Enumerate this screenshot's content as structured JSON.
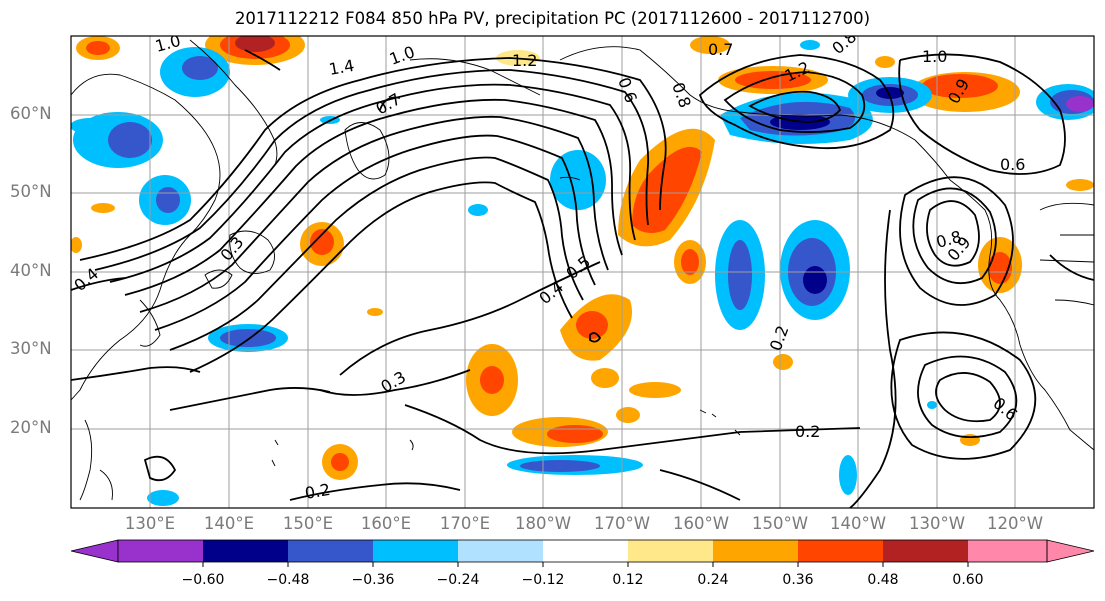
{
  "title": "2017112212 F084 850 hPa PV, precipitation PC (2017112600 - 2017112700)",
  "lat_labels": [
    "60°N",
    "50°N",
    "40°N",
    "30°N",
    "20°N"
  ],
  "lon_labels": [
    "130°E",
    "140°E",
    "150°E",
    "160°E",
    "170°E",
    "180°W",
    "170°W",
    "160°W",
    "150°W",
    "140°W",
    "130°W",
    "120°W"
  ],
  "contour_labels": [
    "1.0",
    "1.4",
    "1.0",
    "1.2",
    "0.7",
    "0.8",
    "1.0",
    "1.2",
    "0.7",
    "0.6",
    "0.8",
    "0.6",
    "0.9",
    "0.3",
    "0.4",
    "0.4",
    "0.5",
    "0.2",
    "0.3",
    "0.2",
    "0.2",
    "0.8",
    "0.9",
    "0.6"
  ],
  "colorbar": {
    "colors": [
      "#9932cc",
      "#00008b",
      "#3656cc",
      "#00bfff",
      "#b0e2ff",
      "#ffffff",
      "#ffe88a",
      "#ffa500",
      "#ff4500",
      "#b22222",
      "#ff88aa"
    ],
    "ticks": [
      "−0.60",
      "−0.48",
      "−0.36",
      "−0.24",
      "−0.12",
      "0.12",
      "0.24",
      "0.36",
      "0.48",
      "0.60"
    ]
  }
}
